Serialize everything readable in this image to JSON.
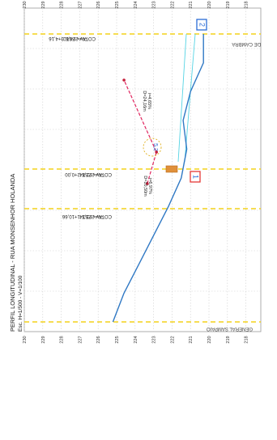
{
  "drawing": {
    "title": "PERFIL LONGITUDINAL - RUA MONSENHOR HOLANDA",
    "scale": "Esc.  H=1/500 - V=1/100",
    "street_labels": [
      "GENERAL SAMPAIO",
      "DE CAMBRA"
    ],
    "markers": [
      "1",
      "2"
    ],
    "slope_1": "i=6,97%",
    "length_1": "D=10,50m",
    "slope_2": "i=4,65%",
    "length_2": "D=24,16m",
    "curve_badge": "5,2",
    "piv_1_label": "PIV= EST. 1+10,66",
    "piv_1_cota": "COTA= 223,34",
    "piv_2_label": "PIV= EST. 2+0,00",
    "piv_2_cota": "COTA= 222,84",
    "piv_3_label": "PIV= EST. 3+4,16",
    "piv_3_cota": "COTA= 224,60",
    "colors": {
      "terrain": "#2f78c4",
      "grade": "#e0245e",
      "cyan": "#55d4e4",
      "yellow": "#f4d21a",
      "red_box": "#e53935",
      "blue_box": "#2b6cd6"
    }
  },
  "chart_data": {
    "type": "line",
    "axis_ticks": [
      230,
      229,
      228,
      227,
      226,
      225,
      224,
      223,
      222,
      221,
      220,
      219,
      218
    ],
    "series": [
      {
        "name": "",
        "x": [
          0,
          10,
          20,
          30,
          40,
          50,
          60,
          70,
          80,
          90,
          100
        ],
        "values": [
          225.2,
          224.6,
          223.8,
          223.0,
          222.2,
          221.5,
          221.2,
          221.4,
          221.0,
          220.3,
          220.3
        ]
      },
      {
        "name": "",
        "x": [
          48,
          59,
          84
        ],
        "values": [
          223.34,
          222.84,
          224.6
        ]
      }
    ]
  }
}
